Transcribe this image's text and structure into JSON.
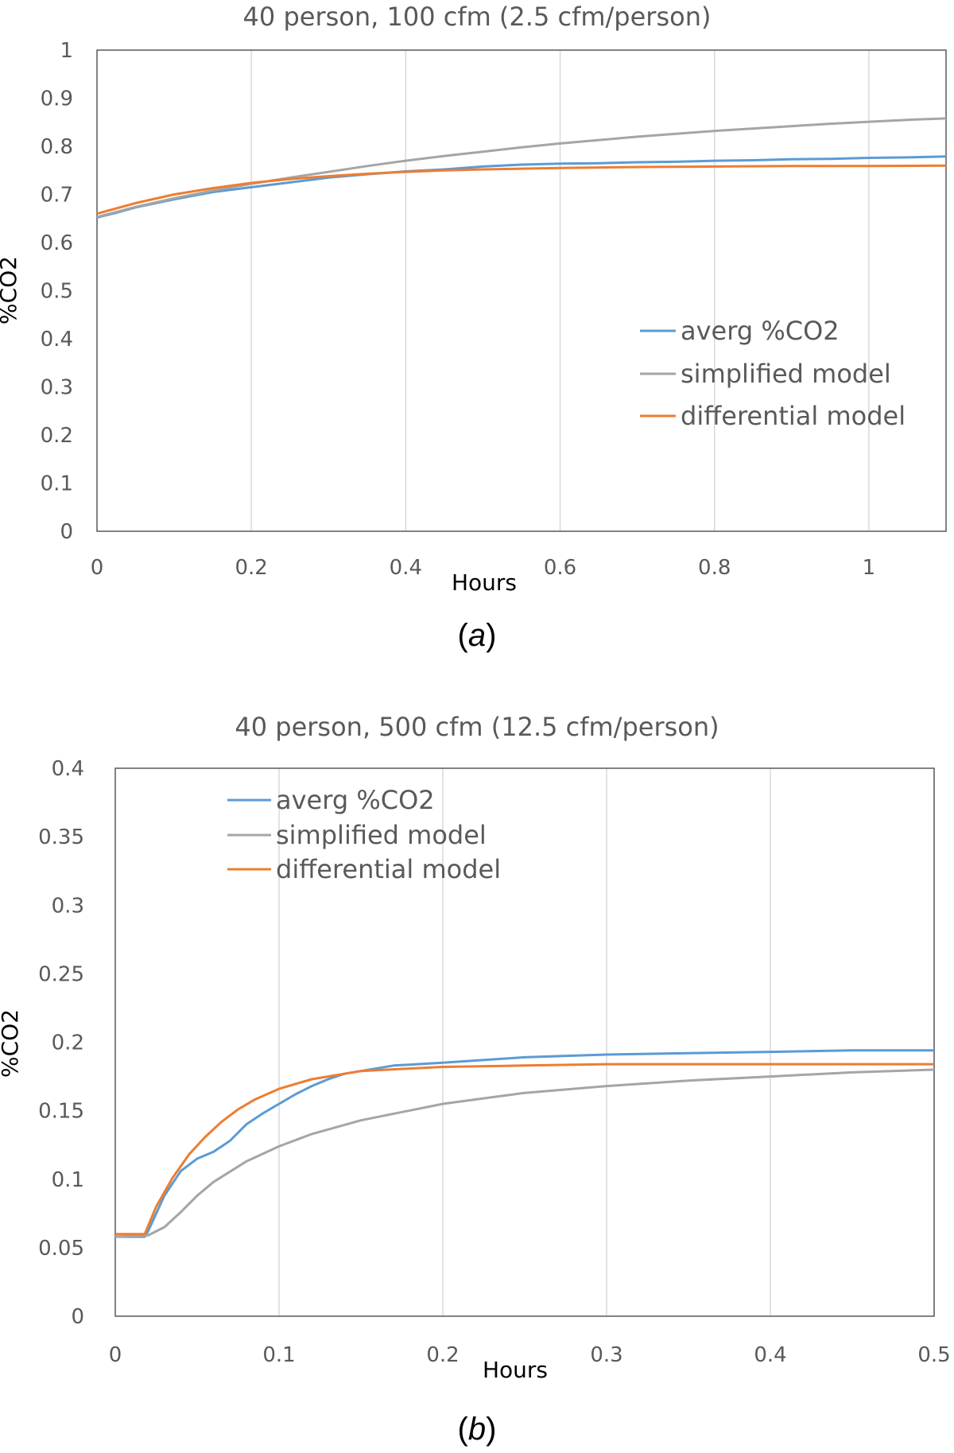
{
  "chart_data": [
    {
      "type": "line",
      "caption_prefix": "(",
      "caption_letter": "a",
      "caption_suffix": ")",
      "title": "40 person, 100 cfm (2.5 cfm/person)",
      "xlabel": "Hours",
      "ylabel": "%CO2",
      "xlim": [
        0,
        1.1
      ],
      "ylim": [
        0,
        1
      ],
      "xticks": [
        0,
        0.2,
        0.4,
        0.6,
        0.8,
        1
      ],
      "xtick_labels": [
        "0",
        "0.2",
        "0.4",
        "0.6",
        "0.8",
        "1"
      ],
      "yticks": [
        0,
        0.1,
        0.2,
        0.3,
        0.4,
        0.5,
        0.6,
        0.7,
        0.8,
        0.9,
        1
      ],
      "ytick_labels": [
        "0",
        "0.1",
        "0.2",
        "0.3",
        "0.4",
        "0.5",
        "0.6",
        "0.7",
        "0.8",
        "0.9",
        "1"
      ],
      "grid": "vertical",
      "legend_position": "lower-right",
      "series": [
        {
          "name": "averg %CO2",
          "color": "#5b9bd5",
          "x": [
            0,
            0.025,
            0.05,
            0.1,
            0.15,
            0.2,
            0.25,
            0.3,
            0.35,
            0.4,
            0.45,
            0.5,
            0.55,
            0.6,
            0.65,
            0.7,
            0.75,
            0.8,
            0.85,
            0.9,
            0.95,
            1.0,
            1.05,
            1.1
          ],
          "y": [
            0.652,
            0.662,
            0.673,
            0.69,
            0.705,
            0.715,
            0.725,
            0.735,
            0.742,
            0.748,
            0.752,
            0.758,
            0.762,
            0.764,
            0.765,
            0.767,
            0.768,
            0.77,
            0.771,
            0.773,
            0.774,
            0.776,
            0.777,
            0.779
          ]
        },
        {
          "name": "simplified model",
          "color": "#a5a5a5",
          "x": [
            0,
            0.05,
            0.1,
            0.15,
            0.2,
            0.25,
            0.3,
            0.35,
            0.4,
            0.45,
            0.5,
            0.55,
            0.6,
            0.65,
            0.7,
            0.75,
            0.8,
            0.85,
            0.9,
            0.95,
            1.0,
            1.05,
            1.1
          ],
          "y": [
            0.653,
            0.674,
            0.692,
            0.708,
            0.722,
            0.735,
            0.747,
            0.759,
            0.77,
            0.78,
            0.789,
            0.798,
            0.806,
            0.813,
            0.82,
            0.826,
            0.832,
            0.837,
            0.842,
            0.847,
            0.851,
            0.855,
            0.858
          ]
        },
        {
          "name": "differential model",
          "color": "#ed7d31",
          "x": [
            0,
            0.05,
            0.1,
            0.15,
            0.2,
            0.25,
            0.3,
            0.35,
            0.4,
            0.45,
            0.5,
            0.6,
            0.7,
            0.8,
            0.9,
            1.0,
            1.1
          ],
          "y": [
            0.66,
            0.682,
            0.7,
            0.713,
            0.724,
            0.732,
            0.738,
            0.743,
            0.747,
            0.75,
            0.752,
            0.755,
            0.757,
            0.758,
            0.759,
            0.759,
            0.76
          ]
        }
      ]
    },
    {
      "type": "line",
      "caption_prefix": "(",
      "caption_letter": "b",
      "caption_suffix": ")",
      "title": "40 person, 500 cfm (12.5 cfm/person)",
      "xlabel": "Hours",
      "ylabel": "%CO2",
      "xlim": [
        0,
        0.5
      ],
      "ylim": [
        0,
        0.4
      ],
      "xticks": [
        0,
        0.1,
        0.2,
        0.3,
        0.4,
        0.5
      ],
      "xtick_labels": [
        "0",
        "0.1",
        "0.2",
        "0.3",
        "0.4",
        "0.5"
      ],
      "yticks": [
        0,
        0.05,
        0.1,
        0.15,
        0.2,
        0.25,
        0.3,
        0.35,
        0.4
      ],
      "ytick_labels": [
        "0",
        "0.05",
        "0.1",
        "0.15",
        "0.2",
        "0.25",
        "0.3",
        "0.35",
        "0.4"
      ],
      "grid": "vertical",
      "legend_position": "top-left",
      "series": [
        {
          "name": "averg %CO2",
          "color": "#5b9bd5",
          "x": [
            0,
            0.018,
            0.02,
            0.03,
            0.04,
            0.05,
            0.06,
            0.07,
            0.08,
            0.09,
            0.1,
            0.11,
            0.12,
            0.13,
            0.14,
            0.15,
            0.17,
            0.2,
            0.25,
            0.3,
            0.35,
            0.4,
            0.45,
            0.5
          ],
          "y": [
            0.058,
            0.058,
            0.062,
            0.088,
            0.106,
            0.115,
            0.12,
            0.128,
            0.14,
            0.148,
            0.155,
            0.162,
            0.168,
            0.173,
            0.177,
            0.179,
            0.183,
            0.185,
            0.189,
            0.191,
            0.192,
            0.193,
            0.194,
            0.194
          ]
        },
        {
          "name": "simplified model",
          "color": "#a5a5a5",
          "x": [
            0,
            0.02,
            0.03,
            0.04,
            0.05,
            0.06,
            0.08,
            0.1,
            0.12,
            0.15,
            0.2,
            0.25,
            0.3,
            0.35,
            0.4,
            0.45,
            0.5
          ],
          "y": [
            0.058,
            0.059,
            0.065,
            0.076,
            0.088,
            0.098,
            0.113,
            0.124,
            0.133,
            0.143,
            0.155,
            0.163,
            0.168,
            0.172,
            0.175,
            0.178,
            0.18
          ]
        },
        {
          "name": "differential model",
          "color": "#ed7d31",
          "x": [
            0,
            0.018,
            0.025,
            0.035,
            0.045,
            0.055,
            0.065,
            0.075,
            0.085,
            0.1,
            0.12,
            0.15,
            0.2,
            0.25,
            0.3,
            0.4,
            0.5
          ],
          "y": [
            0.06,
            0.06,
            0.08,
            0.101,
            0.118,
            0.131,
            0.142,
            0.151,
            0.158,
            0.166,
            0.173,
            0.179,
            0.182,
            0.183,
            0.184,
            0.184,
            0.184
          ]
        }
      ]
    }
  ]
}
